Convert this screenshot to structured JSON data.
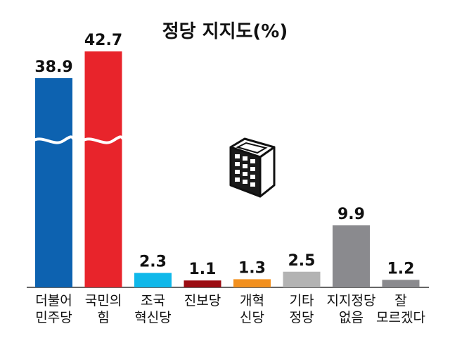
{
  "chart_data": {
    "type": "bar",
    "title": "정당 지지도(%)",
    "categories": [
      [
        "더불어",
        "민주당"
      ],
      [
        "국민의",
        "힘"
      ],
      [
        "조국",
        "혁신당"
      ],
      [
        "진보당"
      ],
      [
        "개혁",
        "신당"
      ],
      [
        "기타",
        "정당"
      ],
      [
        "지지정당",
        "없음"
      ],
      [
        "잘",
        "모르겠다"
      ]
    ],
    "values": [
      38.9,
      42.7,
      2.3,
      1.1,
      1.3,
      2.5,
      9.9,
      1.2
    ],
    "value_labels": [
      "38.9",
      "42.7",
      "2.3",
      "1.1",
      "1.3",
      "2.5",
      "9.9",
      "1.2"
    ],
    "colors": [
      "#0d62b0",
      "#e8242b",
      "#0fb8ea",
      "#9b0c12",
      "#f2901e",
      "#b3b3b3",
      "#8a8a8e",
      "#8a8a8e"
    ],
    "axis_break_bars": [
      0,
      1
    ],
    "grid": false,
    "legend": "none",
    "icon": "building-icon"
  }
}
